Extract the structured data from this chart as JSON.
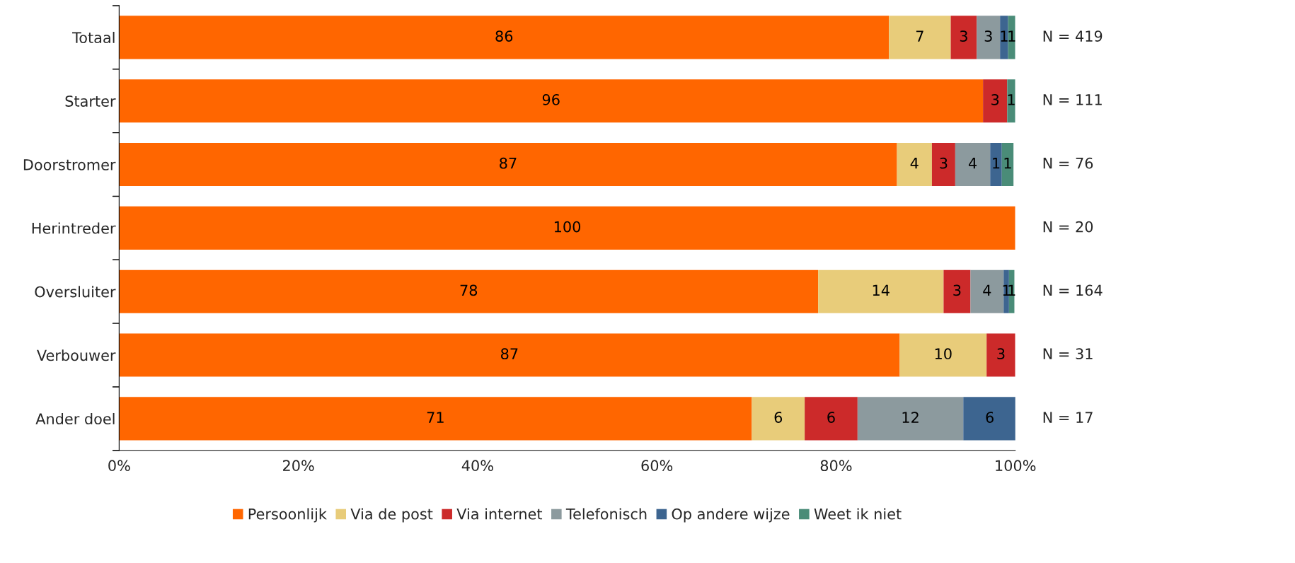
{
  "chart_data": {
    "type": "bar",
    "orientation": "horizontal",
    "stacked": true,
    "categories": [
      "Totaal",
      "Starter",
      "Doorstromer",
      "Herintreder",
      "Oversluiter",
      "Verbouwer",
      "Ander doel"
    ],
    "series": [
      {
        "name": "Persoonlijk",
        "color": "#ff6600",
        "values": [
          85.9,
          96.4,
          86.8,
          100,
          78.0,
          87.1,
          70.6
        ],
        "value_labels": [
          "86",
          "96",
          "87",
          "100",
          "78",
          "87",
          "71"
        ]
      },
      {
        "name": "Via de post",
        "color": "#e8cc7a",
        "values": [
          6.9,
          null,
          3.9,
          null,
          14.0,
          9.7,
          5.9
        ],
        "value_labels": [
          "7",
          null,
          "4",
          null,
          "14",
          "10",
          "6"
        ]
      },
      {
        "name": "Via internet",
        "color": "#cc2a2a",
        "values": [
          2.9,
          2.7,
          2.6,
          null,
          3.0,
          3.2,
          5.9
        ],
        "value_labels": [
          "3",
          "3",
          "3",
          null,
          "3",
          "3",
          "6"
        ]
      },
      {
        "name": "Telefonisch",
        "color": "#8c9a9e",
        "values": [
          2.6,
          null,
          3.9,
          null,
          3.7,
          null,
          11.8
        ],
        "value_labels": [
          "3",
          null,
          "4",
          null,
          "4",
          null,
          "12"
        ]
      },
      {
        "name": "Op andere wijze",
        "color": "#3d6590",
        "values": [
          0.9,
          null,
          1.3,
          null,
          0.6,
          null,
          5.9
        ],
        "value_labels": [
          "1",
          null,
          "1",
          null,
          "1",
          null,
          "6"
        ]
      },
      {
        "name": "Weet ik niet",
        "color": "#4a8c78",
        "values": [
          0.8,
          0.9,
          1.3,
          null,
          0.6,
          null,
          null
        ],
        "value_labels": [
          "1",
          "1",
          "1",
          null,
          "1",
          null,
          null
        ]
      }
    ],
    "xlim": [
      0,
      100
    ],
    "xticks": [
      {
        "value": 0,
        "label": "0%"
      },
      {
        "value": 20,
        "label": "20%"
      },
      {
        "value": 40,
        "label": "40%"
      },
      {
        "value": 60,
        "label": "60%"
      },
      {
        "value": 80,
        "label": "80%"
      },
      {
        "value": 100,
        "label": "100%"
      }
    ],
    "annotations": [
      "N = 419",
      "N = 111",
      "N = 76",
      "N = 20",
      "N = 164",
      "N = 31",
      "N = 17"
    ],
    "legend": "bottom",
    "grid": false
  }
}
